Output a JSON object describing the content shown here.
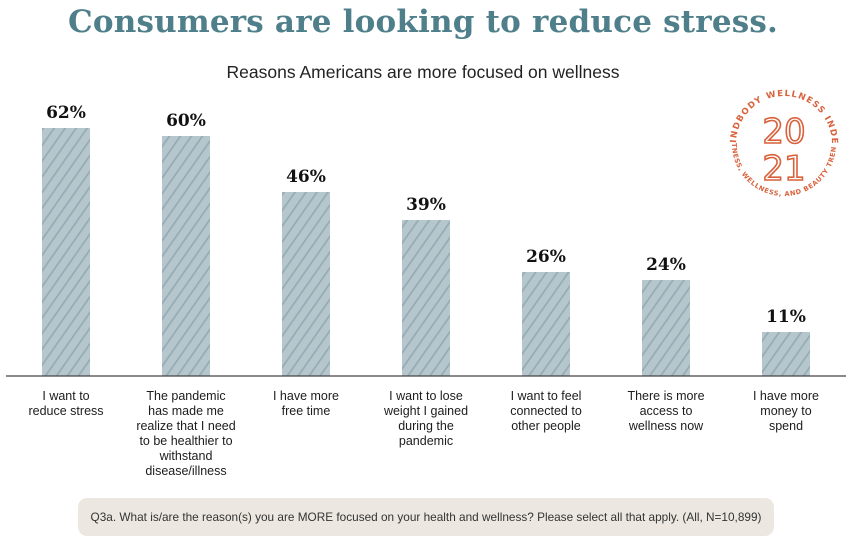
{
  "header": {
    "title": "Consumers are looking to reduce stress.",
    "subtitle": "Reasons Americans are more focused on wellness"
  },
  "badge": {
    "arc_top": "MINDBODY WELLNESS INDEX",
    "arc_bottom": "FITNESS, WELLNESS, AND BEAUTY TRENDS",
    "year_top": "20",
    "year_bottom": "21",
    "color": "#d9623c"
  },
  "chart_data": {
    "type": "bar",
    "title": "Reasons Americans are more focused on wellness",
    "categories": [
      [
        "I want to",
        "reduce stress"
      ],
      [
        "The pandemic",
        "has made me",
        "realize that I need",
        "to be healthier to",
        "withstand",
        "disease/illness"
      ],
      [
        "I have more",
        "free time"
      ],
      [
        "I want to lose",
        "weight I gained",
        "during the",
        "pandemic"
      ],
      [
        "I want to feel",
        "connected to",
        "other people"
      ],
      [
        "There is more",
        "access to",
        "wellness now"
      ],
      [
        "I have more",
        "money to",
        "spend"
      ]
    ],
    "values": [
      62,
      60,
      46,
      39,
      26,
      24,
      11
    ],
    "value_labels": [
      "62%",
      "60%",
      "46%",
      "39%",
      "26%",
      "24%",
      "11%"
    ],
    "unit": "%",
    "ylim": [
      0,
      62
    ],
    "grid": false,
    "bar_color": "#b6c6cd",
    "hatch_color": "#8aa3ad"
  },
  "footnote": "Q3a. What is/are the reason(s) you are MORE focused on your health and wellness? Please select all that apply. (All, N=10,899)"
}
